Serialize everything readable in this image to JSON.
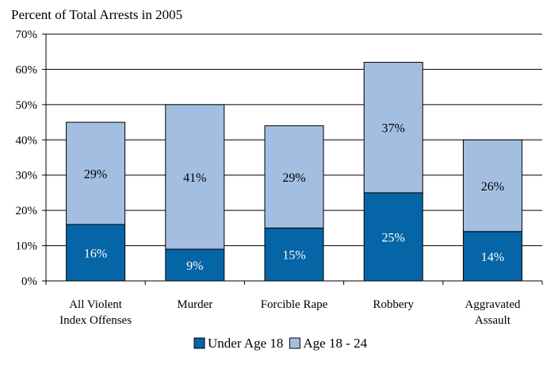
{
  "chart_data": {
    "type": "bar",
    "stacked": true,
    "title": "Percent of Total Arrests in 2005",
    "categories": [
      [
        "All Violent",
        "Index Offenses"
      ],
      [
        "Murder"
      ],
      [
        "Forcible Rape"
      ],
      [
        "Robbery"
      ],
      [
        "Aggravated",
        "Assault"
      ]
    ],
    "series": [
      {
        "name": "Under Age 18",
        "values": [
          16,
          9,
          15,
          25,
          14
        ],
        "color": "#0565a6",
        "labels": [
          "16%",
          "9%",
          "15%",
          "25%",
          "14%"
        ],
        "label_color": "#ffffff"
      },
      {
        "name": "Age 18 - 24",
        "values": [
          29,
          41,
          29,
          37,
          26
        ],
        "color": "#a4bee2",
        "labels": [
          "29%",
          "41%",
          "29%",
          "37%",
          "26%"
        ],
        "label_color": "#000000"
      }
    ],
    "ylim": [
      0,
      70
    ],
    "yticks": [
      0,
      10,
      20,
      30,
      40,
      50,
      60,
      70
    ],
    "ytick_labels": [
      "0%",
      "10%",
      "20%",
      "30%",
      "40%",
      "50%",
      "60%",
      "70%"
    ],
    "grid": true,
    "legend": "bottom",
    "xlabel": "",
    "ylabel": ""
  }
}
